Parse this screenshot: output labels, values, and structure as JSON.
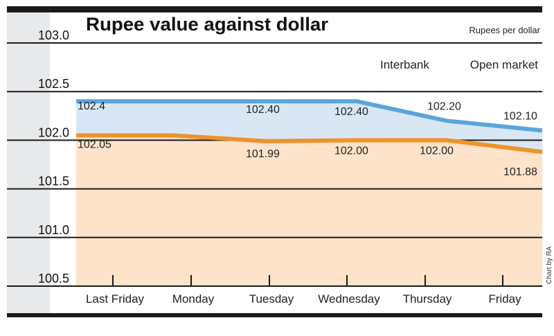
{
  "chart_data": {
    "type": "area",
    "title": "Rupee value against dollar",
    "unit_label": "Rupees per dollar",
    "credit": "Chart by RA",
    "categories": [
      "Last Friday",
      "Monday",
      "Tuesday",
      "Wednesday",
      "Thursday",
      "Friday"
    ],
    "ylim": [
      100.5,
      103.0
    ],
    "yticks": [
      "103.0",
      "102.5",
      "102.0",
      "101.5",
      "101.0",
      "100.5"
    ],
    "grid": true,
    "legend": [
      "Interbank",
      "Open market"
    ],
    "series": [
      {
        "name": "Interbank",
        "color": "#5aa6dc",
        "fill": "#d9e7f5",
        "values": [
          102.4,
          102.4,
          102.4,
          102.4,
          102.2,
          102.1
        ],
        "labels": [
          "102.4",
          "",
          "102.40",
          "102.40",
          "102.20",
          "102.10"
        ]
      },
      {
        "name": "Open market",
        "color": "#f0922a",
        "fill": "#fde3c9",
        "values": [
          102.05,
          102.05,
          101.99,
          102.0,
          102.0,
          101.88
        ],
        "labels": [
          "102.05",
          "",
          "101.99",
          "102.00",
          "102.00",
          "101.88"
        ]
      }
    ]
  }
}
